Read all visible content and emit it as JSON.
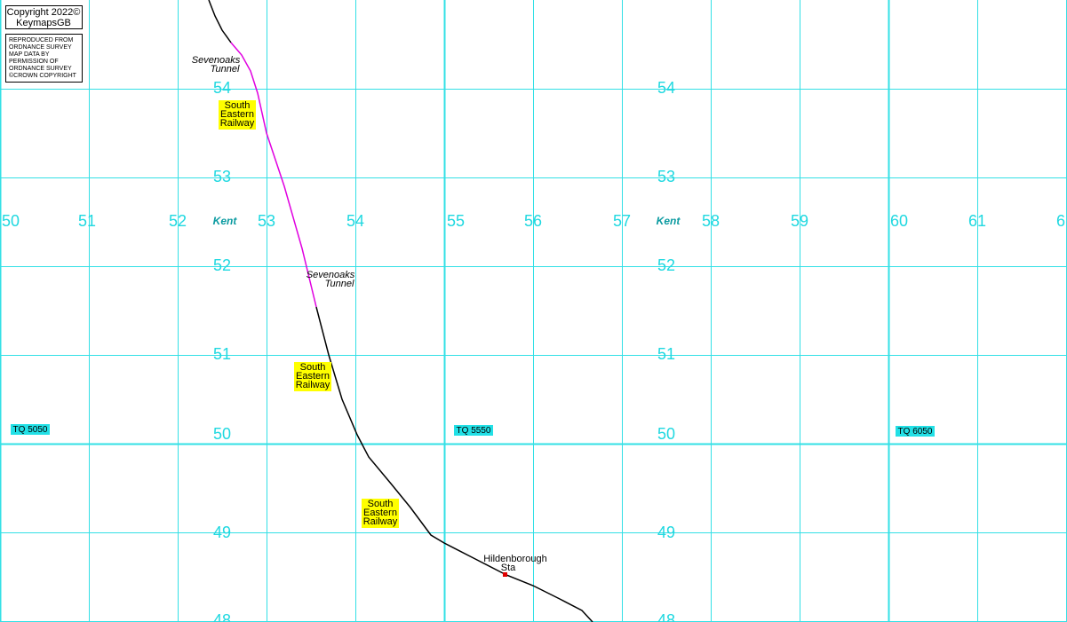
{
  "copyright": {
    "line1": "Copyright 2022©",
    "line2": "KeymapsGB"
  },
  "permission": [
    "REPRODUCED FROM",
    "ORDNANCE SURVEY",
    "MAP DATA BY",
    "PERMISSION OF",
    "ORDNANCE SURVEY",
    "©CROWN COPYRIGHT"
  ],
  "eastings": [
    "50",
    "51",
    "52",
    "53",
    "54",
    "55",
    "56",
    "57",
    "58",
    "59",
    "60",
    "61",
    "6"
  ],
  "northings": [
    "54",
    "53",
    "52",
    "51",
    "50",
    "49",
    "48"
  ],
  "county_labels": [
    "Kent",
    "Kent"
  ],
  "grid_refs": [
    "TQ 5050",
    "TQ 5550",
    "TQ 6050"
  ],
  "tunnels": [
    [
      "Sevenoaks",
      "Tunnel"
    ],
    [
      "Sevenoaks",
      "Tunnel"
    ]
  ],
  "railway_labels": [
    [
      "South",
      "Eastern",
      "Railway"
    ],
    [
      "South",
      "Eastern",
      "Railway"
    ],
    [
      "South",
      "Eastern",
      "Railway"
    ]
  ],
  "station": [
    "Hildenborough",
    "Sta"
  ]
}
